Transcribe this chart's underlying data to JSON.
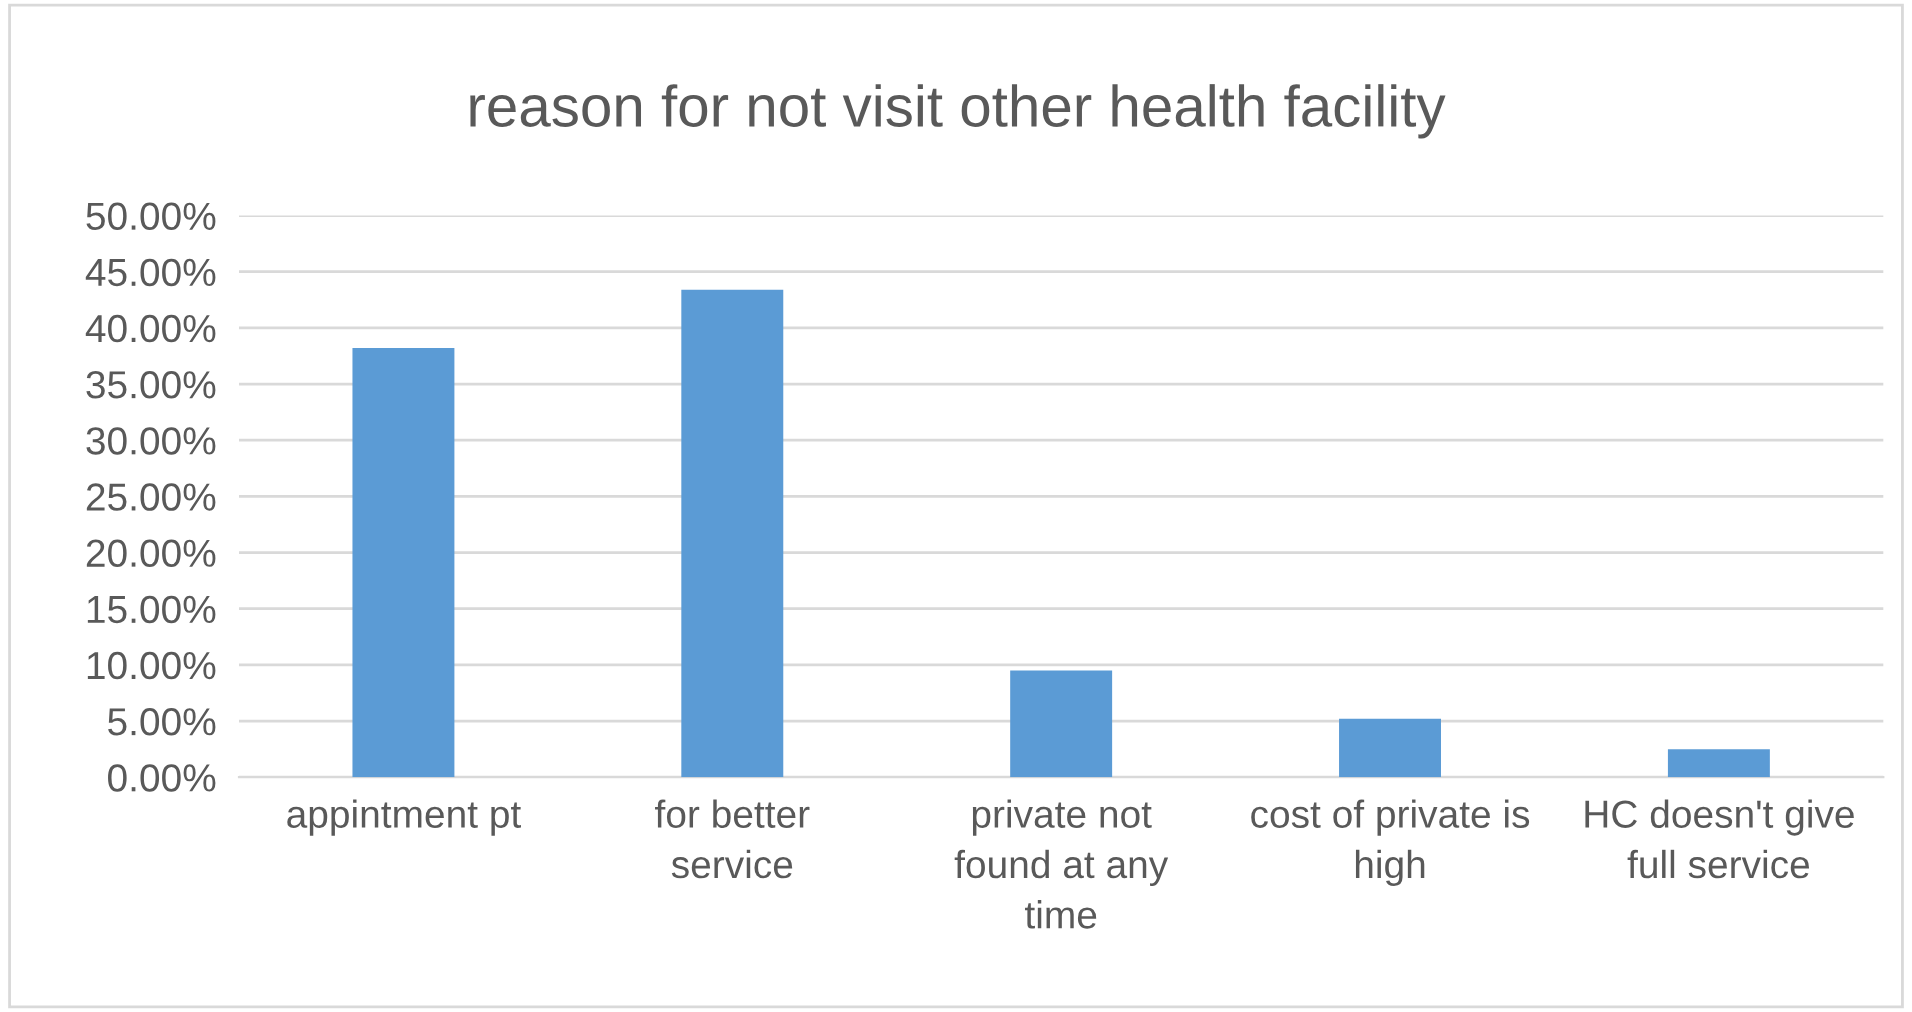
{
  "chart_data": {
    "type": "bar",
    "title": "reason for not visit other health facility",
    "categories": [
      "appintment pt",
      "for better\nservice",
      "private not\nfound at any\ntime",
      "cost of private is\nhigh",
      "HC doesn't give\nfull service"
    ],
    "values": [
      38.2,
      43.4,
      9.5,
      5.2,
      2.5
    ],
    "color": "#5b9bd5",
    "ylim": [
      0,
      50
    ],
    "yticks": [
      {
        "value": 0,
        "label": "0.00%"
      },
      {
        "value": 5,
        "label": "5.00%"
      },
      {
        "value": 10,
        "label": "10.00%"
      },
      {
        "value": 15,
        "label": "15.00%"
      },
      {
        "value": 20,
        "label": "20.00%"
      },
      {
        "value": 25,
        "label": "25.00%"
      },
      {
        "value": 30,
        "label": "30.00%"
      },
      {
        "value": 35,
        "label": "35.00%"
      },
      {
        "value": 40,
        "label": "40.00%"
      },
      {
        "value": 45,
        "label": "45.00%"
      },
      {
        "value": 50,
        "label": "50.00%"
      }
    ],
    "grid": "y"
  }
}
